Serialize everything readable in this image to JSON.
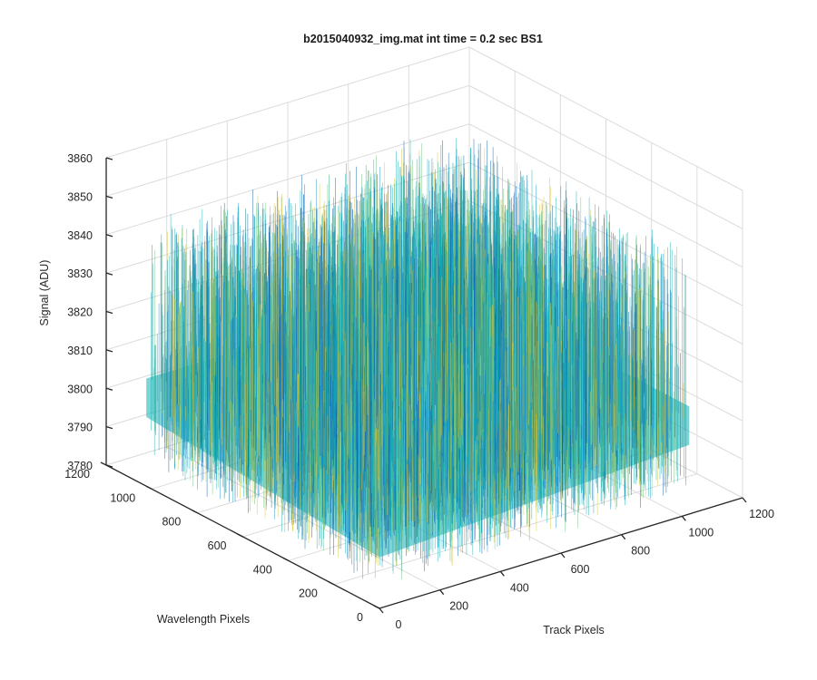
{
  "chart_data": {
    "type": "surface",
    "title": "b2015040932_img.mat int time = 0.2 sec   BS1",
    "xlabel": "Track Pixels",
    "ylabel": "Wavelength Pixels",
    "zlabel": "Signal (ADU)",
    "xlim": [
      0,
      1200
    ],
    "ylim": [
      0,
      1200
    ],
    "zlim": [
      3780,
      3860
    ],
    "x_ticks": [
      0,
      200,
      400,
      600,
      800,
      1000,
      1200
    ],
    "y_ticks": [
      0,
      200,
      400,
      600,
      800,
      1000,
      1200
    ],
    "z_ticks": [
      3780,
      3790,
      3800,
      3810,
      3820,
      3830,
      3840,
      3850,
      3860
    ],
    "x_tick_labels": [
      "0",
      "200",
      "400",
      "600",
      "800",
      "1000",
      "1200"
    ],
    "y_tick_labels": [
      "0",
      "200",
      "400",
      "600",
      "800",
      "1000",
      "1200"
    ],
    "z_tick_labels": [
      "3780",
      "3790",
      "3800",
      "3810",
      "3820",
      "3830",
      "3840",
      "3850",
      "3860"
    ],
    "data_extent": {
      "x": [
        0,
        1024
      ],
      "y": [
        0,
        1024
      ]
    },
    "signal_mean": 3808,
    "signal_noise_range": [
      3785,
      3850
    ],
    "grid": true,
    "colormap": "parula",
    "colors": {
      "dark": "#0a5ea8",
      "blue": "#1a8ed1",
      "teal": "#12b0b5",
      "green": "#6cc07a",
      "yellow": "#d8c53b"
    }
  }
}
